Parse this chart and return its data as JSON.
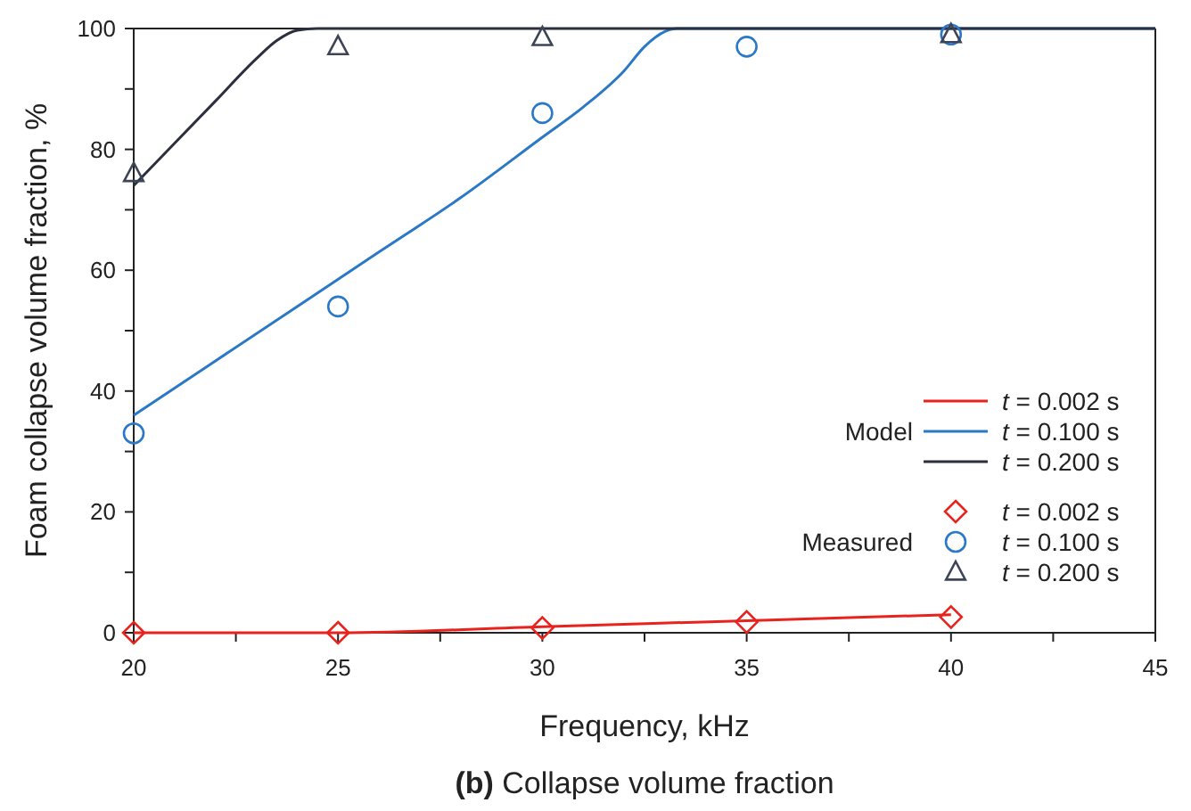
{
  "chart_data": {
    "type": "line",
    "title": "(b) Collapse volume fraction",
    "xlabel": "Frequency, kHz",
    "ylabel": "Foam collapse volume fraction, %",
    "xlim": [
      20,
      45
    ],
    "xticks": [
      20,
      {
        "value": 22.5,
        "label": null
      },
      25,
      {
        "value": 27.5,
        "label": null
      },
      30,
      {
        "value": 32.5,
        "label": null
      },
      35,
      {
        "value": 37.5,
        "label": null
      },
      40,
      {
        "value": 42.5,
        "label": null
      },
      45
    ],
    "ylim": [
      0,
      100
    ],
    "yticks": [
      0,
      {
        "value": 10,
        "label": null
      },
      20,
      {
        "value": 30,
        "label": null
      },
      40,
      {
        "value": 50,
        "label": null
      },
      60,
      {
        "value": 70,
        "label": null
      },
      80,
      {
        "value": 90,
        "label": null
      },
      100
    ],
    "grid": false,
    "legend": "right",
    "annotations": [
      "Model",
      "Measured"
    ],
    "series": [
      {
        "type": "line",
        "name": "t = 0.002 s",
        "color": "#e8231e",
        "marker": "none",
        "x": [
          20,
          25,
          30,
          35,
          40
        ],
        "values": [
          0,
          0,
          1,
          2,
          3
        ]
      },
      {
        "type": "line",
        "name": "t = 0.100 s",
        "color": "#2a78c6",
        "marker": "none",
        "x": [
          20,
          22,
          24,
          26,
          28,
          30,
          31,
          32,
          32.5,
          33,
          33.3,
          33.6,
          34,
          36,
          40,
          45
        ],
        "values": [
          36,
          45,
          54,
          63,
          72,
          82,
          87,
          93,
          97,
          99.5,
          100,
          100,
          100,
          100,
          100,
          100
        ]
      },
      {
        "type": "line",
        "name": "t = 0.200 s",
        "color": "#2b2f3e",
        "marker": "none",
        "x": [
          20,
          21,
          22,
          23,
          23.5,
          24,
          24.5,
          25,
          30,
          45
        ],
        "values": [
          74,
          81,
          88,
          95,
          98,
          99.7,
          100,
          100,
          100,
          100
        ]
      },
      {
        "type": "scatter",
        "name": "t = 0.002 s",
        "color": "#e8231e",
        "marker": "diamond",
        "x": [
          20,
          25,
          30,
          35,
          40
        ],
        "values": [
          0,
          0,
          0.8,
          1.8,
          2.6
        ]
      },
      {
        "type": "scatter",
        "name": "t = 0.100 s",
        "color": "#2a78c6",
        "marker": "circle",
        "x": [
          20,
          25,
          30,
          35,
          40
        ],
        "values": [
          33,
          54,
          86,
          97,
          99
        ]
      },
      {
        "type": "scatter",
        "name": "t = 0.200 s",
        "color": "#3d4455",
        "marker": "triangle",
        "x": [
          20,
          25,
          30,
          40
        ],
        "values": [
          76,
          97,
          98.5,
          99
        ]
      }
    ]
  }
}
